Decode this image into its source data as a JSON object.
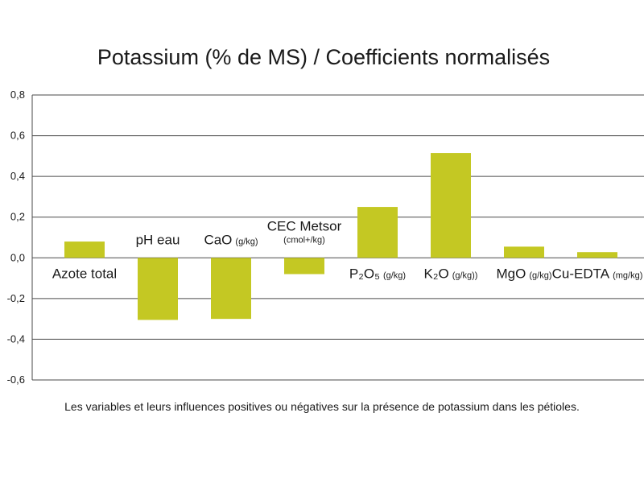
{
  "chart_data": {
    "type": "bar",
    "title": "Potassium (% de MS) / Coefficients normalisés",
    "categories": [
      {
        "main": "Azote total",
        "sub": ""
      },
      {
        "main": "pH eau",
        "sub": ""
      },
      {
        "main": "CaO",
        "sub": "(g/kg)"
      },
      {
        "main": "CEC Metsor",
        "sub": "(cmol+/kg)"
      },
      {
        "main": "P₂O₅",
        "sub": "(g/kg)"
      },
      {
        "main": "K₂O",
        "sub": "(g/kg))"
      },
      {
        "main": "MgO",
        "sub": "(g/kg)"
      },
      {
        "main": "Cu-EDTA",
        "sub": "(mg/kg)"
      }
    ],
    "values": [
      0.08,
      -0.305,
      -0.3,
      -0.08,
      0.25,
      0.515,
      0.055,
      0.028
    ],
    "ylim": [
      -0.6,
      0.8
    ],
    "yticks": [
      {
        "value": 0.8,
        "label": "0,8"
      },
      {
        "value": 0.6,
        "label": "0,6"
      },
      {
        "value": 0.4,
        "label": "0,4"
      },
      {
        "value": 0.2,
        "label": "0,2"
      },
      {
        "value": 0.0,
        "label": "0,0"
      },
      {
        "value": -0.2,
        "label": "-0,2"
      },
      {
        "value": -0.4,
        "label": "-0,4"
      },
      {
        "value": -0.6,
        "label": "-0,6"
      }
    ],
    "grid": true,
    "bar_color": "#c4c823",
    "grid_color": "#4a4a4a"
  },
  "caption": "Les variables et leurs influences positives ou négatives sur la présence de potassium dans les pétioles."
}
